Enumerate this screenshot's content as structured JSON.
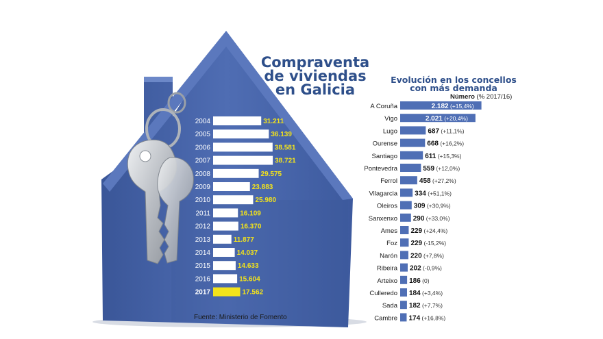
{
  "title_lines": [
    "Compraventa",
    "de viviendas",
    "en Galicia"
  ],
  "subtitle_lines": [
    "Evolución en los concellos",
    "con más demanda"
  ],
  "column_header": {
    "main": "Número",
    "note": "(% 2017/16)"
  },
  "source": "Fuente: Ministerio de Fomento",
  "colors": {
    "house": "#4a67ad",
    "house_dark": "#2f4987",
    "bar_white": "#ffffff",
    "bar_highlight": "#f3e31b",
    "value_yellow": "#f3e31b",
    "bar_blue": "#4f6fb5",
    "title_blue": "#2e4f8a",
    "key": "#c9ccd0"
  },
  "icons": [
    "house-icon",
    "keys-icon"
  ],
  "chart_data": [
    {
      "type": "bar",
      "orientation": "horizontal",
      "categories": [
        "2004",
        "2005",
        "2006",
        "2007",
        "2008",
        "2009",
        "2010",
        "2011",
        "2012",
        "2013",
        "2014",
        "2015",
        "2016",
        "2017"
      ],
      "values": [
        31211,
        36139,
        38581,
        38721,
        29575,
        23883,
        25980,
        16109,
        16370,
        11877,
        14037,
        14633,
        15604,
        17562
      ],
      "labels": [
        "31.211",
        "36.139",
        "38.581",
        "38.721",
        "29.575",
        "23.883",
        "25.980",
        "16.109",
        "16.370",
        "11.877",
        "14.037",
        "14.633",
        "15.604",
        "17.562"
      ],
      "highlight": "2017",
      "xlim": [
        0,
        40000
      ],
      "grid": false,
      "legend": "none"
    },
    {
      "type": "bar",
      "orientation": "horizontal",
      "categories": [
        "A Coruña",
        "Vigo",
        "Lugo",
        "Ourense",
        "Santiago",
        "Pontevedra",
        "Ferrol",
        "Vilagarcia",
        "Oleiros",
        "Sanxenxo",
        "Ames",
        "Foz",
        "Narón",
        "Ribeira",
        "Arteixo",
        "Culleredo",
        "Sada",
        "Cambre"
      ],
      "values": [
        2182,
        2021,
        687,
        668,
        611,
        559,
        458,
        334,
        309,
        290,
        229,
        229,
        220,
        202,
        186,
        184,
        182,
        174
      ],
      "labels": [
        "2.182",
        "2.021",
        "687",
        "668",
        "611",
        "559",
        "458",
        "334",
        "309",
        "290",
        "229",
        "229",
        "220",
        "202",
        "186",
        "184",
        "182",
        "174"
      ],
      "changes": [
        "(+15,4%)",
        "(+20,4%)",
        "(+11,1%)",
        "(+16,2%)",
        "(+15,3%)",
        "(+12,0%)",
        "(+27,2%)",
        "(+51,1%)",
        "(+30,9%)",
        "(+33,0%)",
        "(+24,4%)",
        "(-15,2%)",
        "(+7,8%)",
        "(-0,9%)",
        "(0)",
        "(+3,4%)",
        "(+7,7%)",
        "(+16,8%)"
      ],
      "xlim": [
        0,
        2300
      ],
      "grid": false,
      "legend": "none"
    }
  ]
}
